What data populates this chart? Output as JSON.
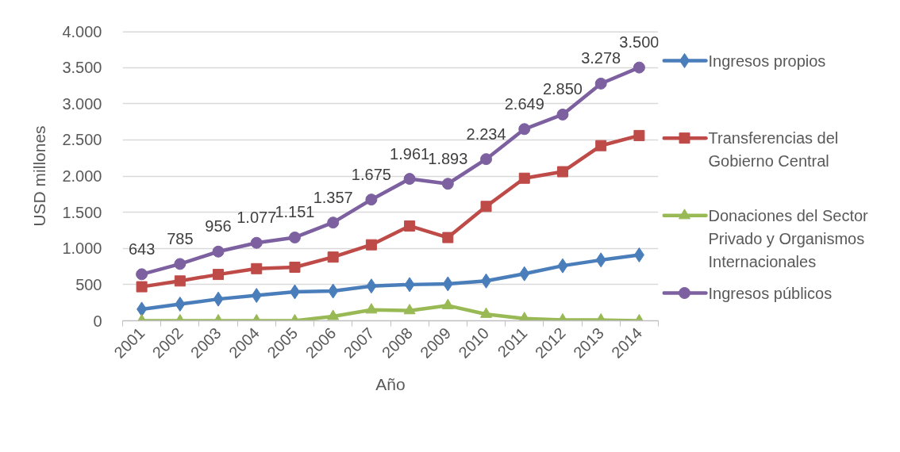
{
  "chart_data": {
    "type": "line",
    "xlabel": "Año",
    "ylabel": "USD millones",
    "categories": [
      "2001",
      "2002",
      "2003",
      "2004",
      "2005",
      "2006",
      "2007",
      "2008",
      "2009",
      "2010",
      "2011",
      "2012",
      "2013",
      "2014"
    ],
    "ylim": [
      0,
      4000
    ],
    "yticks": [
      0,
      500,
      {
        "value": 1000,
        "label": "1.000"
      },
      {
        "value": 1500,
        "label": "1.500"
      },
      {
        "value": 2000,
        "label": "2.000"
      },
      {
        "value": 2500,
        "label": "2.500"
      },
      {
        "value": 3000,
        "label": "3.000"
      },
      {
        "value": 3500,
        "label": "3.500"
      },
      {
        "value": 4000,
        "label": "4.000"
      }
    ],
    "grid": "y",
    "legend": "right",
    "line_style": "solid",
    "series": [
      {
        "name": "Ingresos propios",
        "color": "#4a7ebb",
        "marker": "diamond",
        "values": [
          160,
          230,
          300,
          350,
          400,
          410,
          480,
          500,
          510,
          550,
          650,
          760,
          840,
          910
        ]
      },
      {
        "name": "Transferencias del Gobierno Central",
        "color": "#be4b48",
        "marker": "square",
        "values": [
          470,
          550,
          640,
          720,
          740,
          880,
          1050,
          1310,
          1150,
          1580,
          1970,
          2060,
          2420,
          2560
        ]
      },
      {
        "name": "Donaciones del Sector Privado y Organismos Internacionales",
        "color": "#98b954",
        "marker": "triangle",
        "values": [
          0,
          0,
          0,
          0,
          0,
          60,
          150,
          140,
          210,
          90,
          30,
          10,
          10,
          0
        ]
      },
      {
        "name": "Ingresos públicos",
        "color": "#7d60a0",
        "marker": "circle",
        "values": [
          643,
          785,
          956,
          1077,
          1151,
          1357,
          1675,
          1961,
          1893,
          2234,
          2649,
          2850,
          3278,
          3500
        ],
        "value_labels": [
          "643",
          "785",
          "956",
          "1.077",
          "1.151",
          "1.357",
          "1.675",
          "1.961",
          "1.893",
          "2.234",
          "2.649",
          "2.850",
          "3.278",
          "3.500"
        ]
      }
    ]
  }
}
